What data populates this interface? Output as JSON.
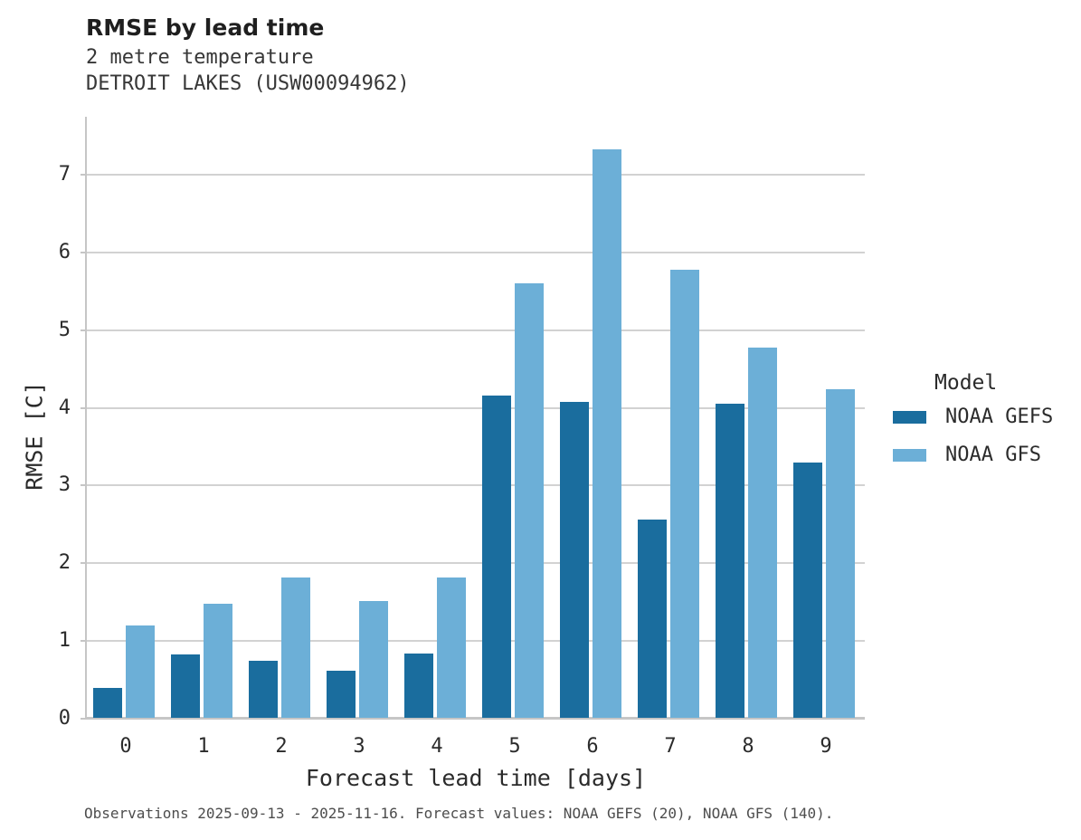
{
  "chart_data": {
    "type": "bar",
    "title": "RMSE by lead time",
    "subtitle": [
      "2 metre temperature",
      "DETROIT LAKES (USW00094962)"
    ],
    "xlabel": "Forecast lead time [days]",
    "ylabel": "RMSE [C]",
    "categories": [
      "0",
      "1",
      "2",
      "3",
      "4",
      "5",
      "6",
      "7",
      "8",
      "9"
    ],
    "series": [
      {
        "name": "NOAA GEFS",
        "color": "#1a6d9e",
        "values": [
          0.38,
          0.82,
          0.73,
          0.61,
          0.83,
          4.15,
          4.06,
          2.55,
          4.04,
          3.28
        ]
      },
      {
        "name": "NOAA GFS",
        "color": "#6cafd7",
        "values": [
          1.19,
          1.47,
          1.81,
          1.5,
          1.81,
          5.59,
          7.31,
          5.77,
          4.76,
          4.23
        ]
      }
    ],
    "ylim": [
      0,
      7.7
    ],
    "yticks": [
      0,
      1,
      2,
      3,
      4,
      5,
      6,
      7
    ],
    "grid": "horizontal",
    "legend": {
      "title": "Model",
      "position": "right"
    },
    "caption": "Observations 2025-09-13 - 2025-11-16. Forecast values: NOAA GEFS (20), NOAA GFS (140)."
  },
  "colors": {
    "background": "#ffffff",
    "gridline": "#d2d2d2",
    "axis_spine": "#c6c6c6",
    "title_text": "#1f1f1f",
    "subtitle_text": "#373737",
    "tick_text": "#2b2b2b",
    "caption_text": "#4d4d4d"
  }
}
